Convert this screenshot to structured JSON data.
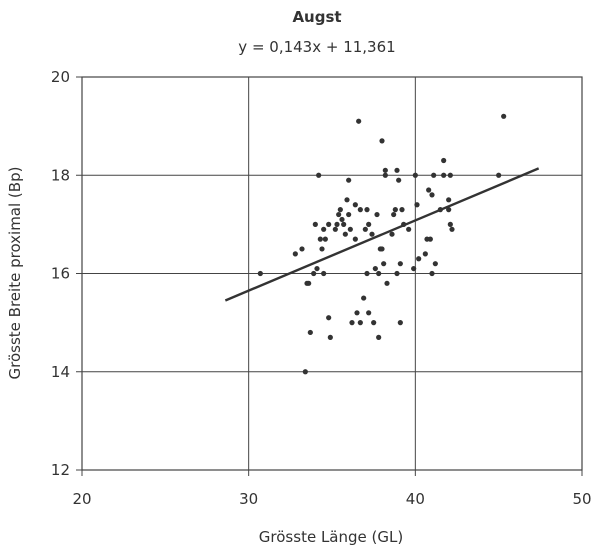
{
  "chart_data": {
    "type": "scatter",
    "title": "Augst",
    "subtitle": "y = 0,143x + 11,361",
    "xlabel": "Grösste Länge (GL)",
    "ylabel": "Grösste Breite proximal (Bp)",
    "xlim": [
      20,
      50
    ],
    "ylim": [
      12,
      20
    ],
    "xticks": [
      20,
      30,
      40,
      50
    ],
    "yticks": [
      12,
      14,
      16,
      18,
      20
    ],
    "grid": true,
    "trendline": {
      "slope": 0.143,
      "intercept": 11.361,
      "x_range": [
        28.6,
        47.4
      ]
    },
    "points": [
      [
        30.7,
        16.0
      ],
      [
        32.8,
        16.4
      ],
      [
        33.2,
        16.5
      ],
      [
        33.4,
        14.0
      ],
      [
        33.5,
        15.8
      ],
      [
        33.6,
        15.8
      ],
      [
        33.7,
        14.8
      ],
      [
        33.9,
        16.0
      ],
      [
        34.0,
        17.0
      ],
      [
        34.1,
        16.1
      ],
      [
        34.2,
        18.0
      ],
      [
        34.3,
        16.7
      ],
      [
        34.4,
        16.5
      ],
      [
        34.5,
        16.9
      ],
      [
        34.6,
        16.7
      ],
      [
        34.5,
        16.0
      ],
      [
        34.8,
        15.1
      ],
      [
        34.9,
        14.7
      ],
      [
        34.8,
        17.0
      ],
      [
        35.2,
        16.9
      ],
      [
        35.3,
        17.0
      ],
      [
        35.4,
        17.2
      ],
      [
        35.5,
        17.3
      ],
      [
        35.6,
        17.1
      ],
      [
        35.7,
        17.0
      ],
      [
        35.9,
        17.5
      ],
      [
        35.8,
        16.8
      ],
      [
        36.0,
        17.2
      ],
      [
        36.0,
        17.9
      ],
      [
        36.1,
        16.9
      ],
      [
        36.2,
        15.0
      ],
      [
        36.4,
        16.7
      ],
      [
        36.4,
        17.4
      ],
      [
        36.5,
        15.2
      ],
      [
        36.6,
        19.1
      ],
      [
        36.7,
        15.0
      ],
      [
        36.7,
        17.3
      ],
      [
        36.9,
        15.5
      ],
      [
        37.0,
        16.9
      ],
      [
        37.1,
        16.0
      ],
      [
        37.1,
        17.3
      ],
      [
        37.2,
        17.0
      ],
      [
        37.2,
        15.2
      ],
      [
        37.4,
        16.8
      ],
      [
        37.5,
        15.0
      ],
      [
        37.6,
        16.1
      ],
      [
        37.7,
        17.2
      ],
      [
        37.8,
        14.7
      ],
      [
        37.8,
        16.0
      ],
      [
        37.9,
        16.5
      ],
      [
        38.0,
        18.7
      ],
      [
        38.0,
        16.5
      ],
      [
        38.1,
        16.2
      ],
      [
        38.2,
        18.1
      ],
      [
        38.2,
        18.0
      ],
      [
        38.3,
        15.8
      ],
      [
        38.6,
        16.8
      ],
      [
        38.7,
        17.2
      ],
      [
        38.8,
        17.3
      ],
      [
        38.9,
        18.1
      ],
      [
        38.9,
        16.0
      ],
      [
        39.0,
        17.9
      ],
      [
        39.1,
        15.0
      ],
      [
        39.1,
        16.2
      ],
      [
        39.2,
        17.3
      ],
      [
        39.3,
        17.0
      ],
      [
        39.6,
        16.9
      ],
      [
        39.9,
        16.1
      ],
      [
        40.0,
        18.0
      ],
      [
        40.1,
        17.4
      ],
      [
        40.2,
        16.3
      ],
      [
        40.6,
        16.4
      ],
      [
        40.7,
        16.7
      ],
      [
        40.8,
        17.7
      ],
      [
        40.9,
        16.7
      ],
      [
        41.0,
        16.0
      ],
      [
        41.0,
        17.6
      ],
      [
        41.1,
        18.0
      ],
      [
        41.2,
        16.2
      ],
      [
        41.5,
        17.3
      ],
      [
        41.7,
        18.3
      ],
      [
        41.7,
        18.0
      ],
      [
        42.0,
        17.3
      ],
      [
        42.0,
        17.5
      ],
      [
        42.1,
        18.0
      ],
      [
        42.1,
        17.0
      ],
      [
        42.2,
        16.9
      ],
      [
        45.0,
        18.0
      ],
      [
        45.3,
        19.2
      ]
    ]
  },
  "colors": {
    "axis": "#444444",
    "grid": "#444444",
    "point": "#333333",
    "trendline": "#333333",
    "background": "#ffffff"
  }
}
